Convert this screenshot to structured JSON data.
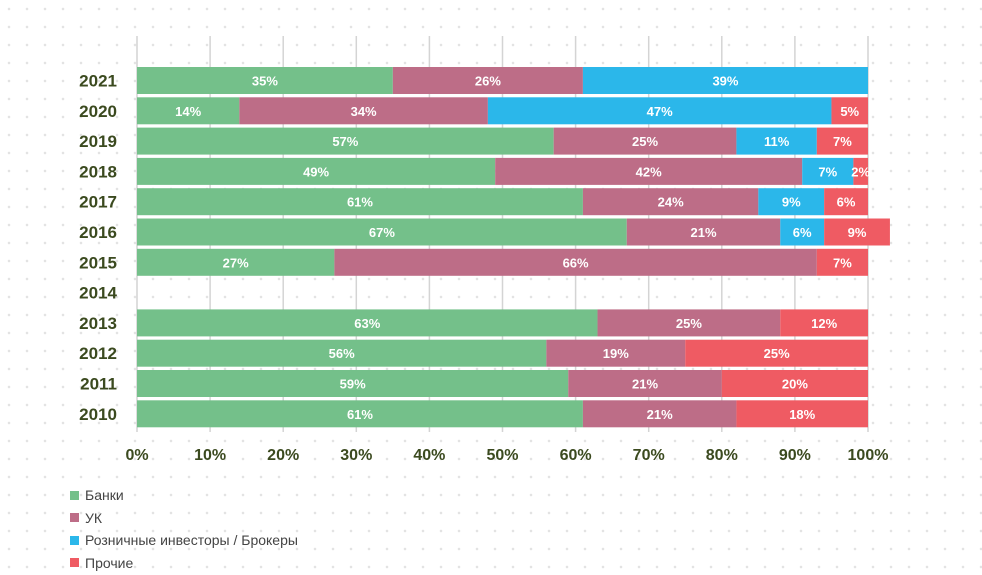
{
  "chart_data": {
    "type": "bar",
    "orientation": "horizontal",
    "stacked": true,
    "categories": [
      "2021",
      "2020",
      "2019",
      "2018",
      "2017",
      "2016",
      "2015",
      "2014",
      "2013",
      "2012",
      "2011",
      "2010"
    ],
    "series": [
      {
        "name": "Банки",
        "color": "#74c08a",
        "values": [
          35,
          14,
          57,
          49,
          61,
          67,
          27,
          null,
          63,
          56,
          59,
          61
        ]
      },
      {
        "name": "УК",
        "color": "#bd6d87",
        "values": [
          26,
          34,
          25,
          42,
          24,
          21,
          66,
          null,
          25,
          19,
          21,
          21
        ]
      },
      {
        "name": "Розничные инвесторы / Брокеры",
        "color": "#2bb7ea",
        "values": [
          39,
          47,
          11,
          7,
          9,
          6,
          0,
          null,
          0,
          0,
          0,
          0
        ]
      },
      {
        "name": "Прочие",
        "color": "#ef5b63",
        "values": [
          0,
          5,
          7,
          2,
          6,
          9,
          7,
          null,
          12,
          25,
          20,
          18
        ]
      }
    ],
    "xlim": [
      0,
      100
    ],
    "xticks": [
      "0%",
      "10%",
      "20%",
      "30%",
      "40%",
      "50%",
      "60%",
      "70%",
      "80%",
      "90%",
      "100%"
    ],
    "grid": "vertical",
    "legend_position": "bottom-left"
  }
}
